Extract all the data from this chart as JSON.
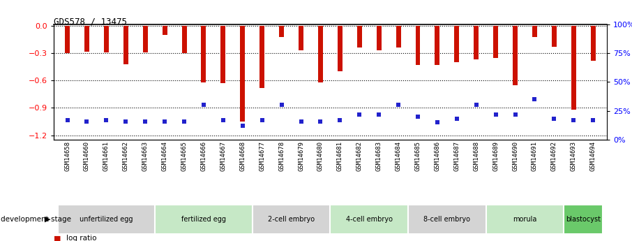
{
  "title": "GDS578 / 13475",
  "samples": [
    "GSM14658",
    "GSM14660",
    "GSM14661",
    "GSM14662",
    "GSM14663",
    "GSM14664",
    "GSM14665",
    "GSM14666",
    "GSM14667",
    "GSM14668",
    "GSM14677",
    "GSM14678",
    "GSM14679",
    "GSM14680",
    "GSM14681",
    "GSM14682",
    "GSM14683",
    "GSM14684",
    "GSM14685",
    "GSM14686",
    "GSM14687",
    "GSM14688",
    "GSM14689",
    "GSM14690",
    "GSM14691",
    "GSM14692",
    "GSM14693",
    "GSM14694"
  ],
  "log_ratios": [
    -0.3,
    -0.28,
    -0.29,
    -0.42,
    -0.29,
    -0.1,
    -0.3,
    -0.62,
    -0.63,
    -1.05,
    -0.68,
    -0.12,
    -0.27,
    -0.62,
    -0.5,
    -0.24,
    -0.27,
    -0.24,
    -0.43,
    -0.43,
    -0.4,
    -0.37,
    -0.35,
    -0.65,
    -0.12,
    -0.23,
    -0.92,
    -0.38
  ],
  "percentile_ranks": [
    17,
    16,
    17,
    16,
    16,
    16,
    16,
    30,
    17,
    12,
    17,
    30,
    16,
    16,
    17,
    22,
    22,
    30,
    20,
    15,
    18,
    30,
    22,
    22,
    35,
    18,
    17,
    17
  ],
  "stage_groups": [
    {
      "label": "unfertilized egg",
      "count": 5,
      "color": "#d4d4d4"
    },
    {
      "label": "fertilized egg",
      "count": 5,
      "color": "#c6e8c6"
    },
    {
      "label": "2-cell embryo",
      "count": 4,
      "color": "#d4d4d4"
    },
    {
      "label": "4-cell embryo",
      "count": 4,
      "color": "#c6e8c6"
    },
    {
      "label": "8-cell embryo",
      "count": 4,
      "color": "#d4d4d4"
    },
    {
      "label": "morula",
      "count": 4,
      "color": "#c6e8c6"
    },
    {
      "label": "blastocyst",
      "count": 2,
      "color": "#6ac96a"
    }
  ],
  "bar_color": "#cc1100",
  "percentile_color": "#2222cc",
  "ylim_left": [
    -1.25,
    0.02
  ],
  "ylim_right": [
    0,
    100
  ],
  "yticks_left": [
    0,
    -0.3,
    -0.6,
    -0.9,
    -1.2
  ],
  "yticks_right": [
    0,
    25,
    50,
    75,
    100
  ],
  "background_color": "#ffffff",
  "bar_width": 0.25
}
